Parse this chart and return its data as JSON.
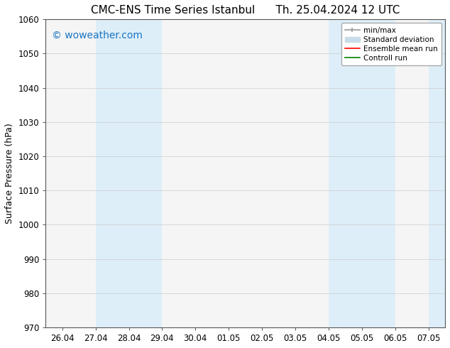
{
  "title_left": "CMC-ENS Time Series Istanbul",
  "title_right": "Th. 25.04.2024 12 UTC",
  "ylabel": "Surface Pressure (hPa)",
  "ylim": [
    970,
    1060
  ],
  "yticks": [
    970,
    980,
    990,
    1000,
    1010,
    1020,
    1030,
    1040,
    1050,
    1060
  ],
  "xtick_labels": [
    "26.04",
    "27.04",
    "28.04",
    "29.04",
    "30.04",
    "01.05",
    "02.05",
    "03.05",
    "04.05",
    "05.05",
    "06.05",
    "07.05"
  ],
  "xtick_positions": [
    0,
    1,
    2,
    3,
    4,
    5,
    6,
    7,
    8,
    9,
    10,
    11
  ],
  "xlim": [
    -0.5,
    11.5
  ],
  "shaded_bands": [
    {
      "xmin": 1.0,
      "xmax": 2.0,
      "color": "#ddeef8"
    },
    {
      "xmin": 2.0,
      "xmax": 3.0,
      "color": "#ddeef8"
    },
    {
      "xmin": 8.0,
      "xmax": 9.0,
      "color": "#ddeef8"
    },
    {
      "xmin": 9.0,
      "xmax": 10.0,
      "color": "#ddeef8"
    },
    {
      "xmin": 11.0,
      "xmax": 11.5,
      "color": "#ddeef8"
    }
  ],
  "watermark_text": "© woweather.com",
  "watermark_color": "#1a75c4",
  "watermark_fontsize": 10,
  "legend_items": [
    {
      "label": "min/max",
      "color": "#999999",
      "lw": 1.2
    },
    {
      "label": "Standard deviation",
      "color": "#c8dcea",
      "lw": 6
    },
    {
      "label": "Ensemble mean run",
      "color": "red",
      "lw": 1.2
    },
    {
      "label": "Controll run",
      "color": "green",
      "lw": 1.2
    }
  ],
  "background_color": "#ffffff",
  "plot_bg_color": "#f5f5f5",
  "grid_color": "#cccccc",
  "title_fontsize": 11,
  "axis_fontsize": 9,
  "tick_fontsize": 8.5,
  "legend_fontsize": 7.5,
  "spine_color": "#555555"
}
